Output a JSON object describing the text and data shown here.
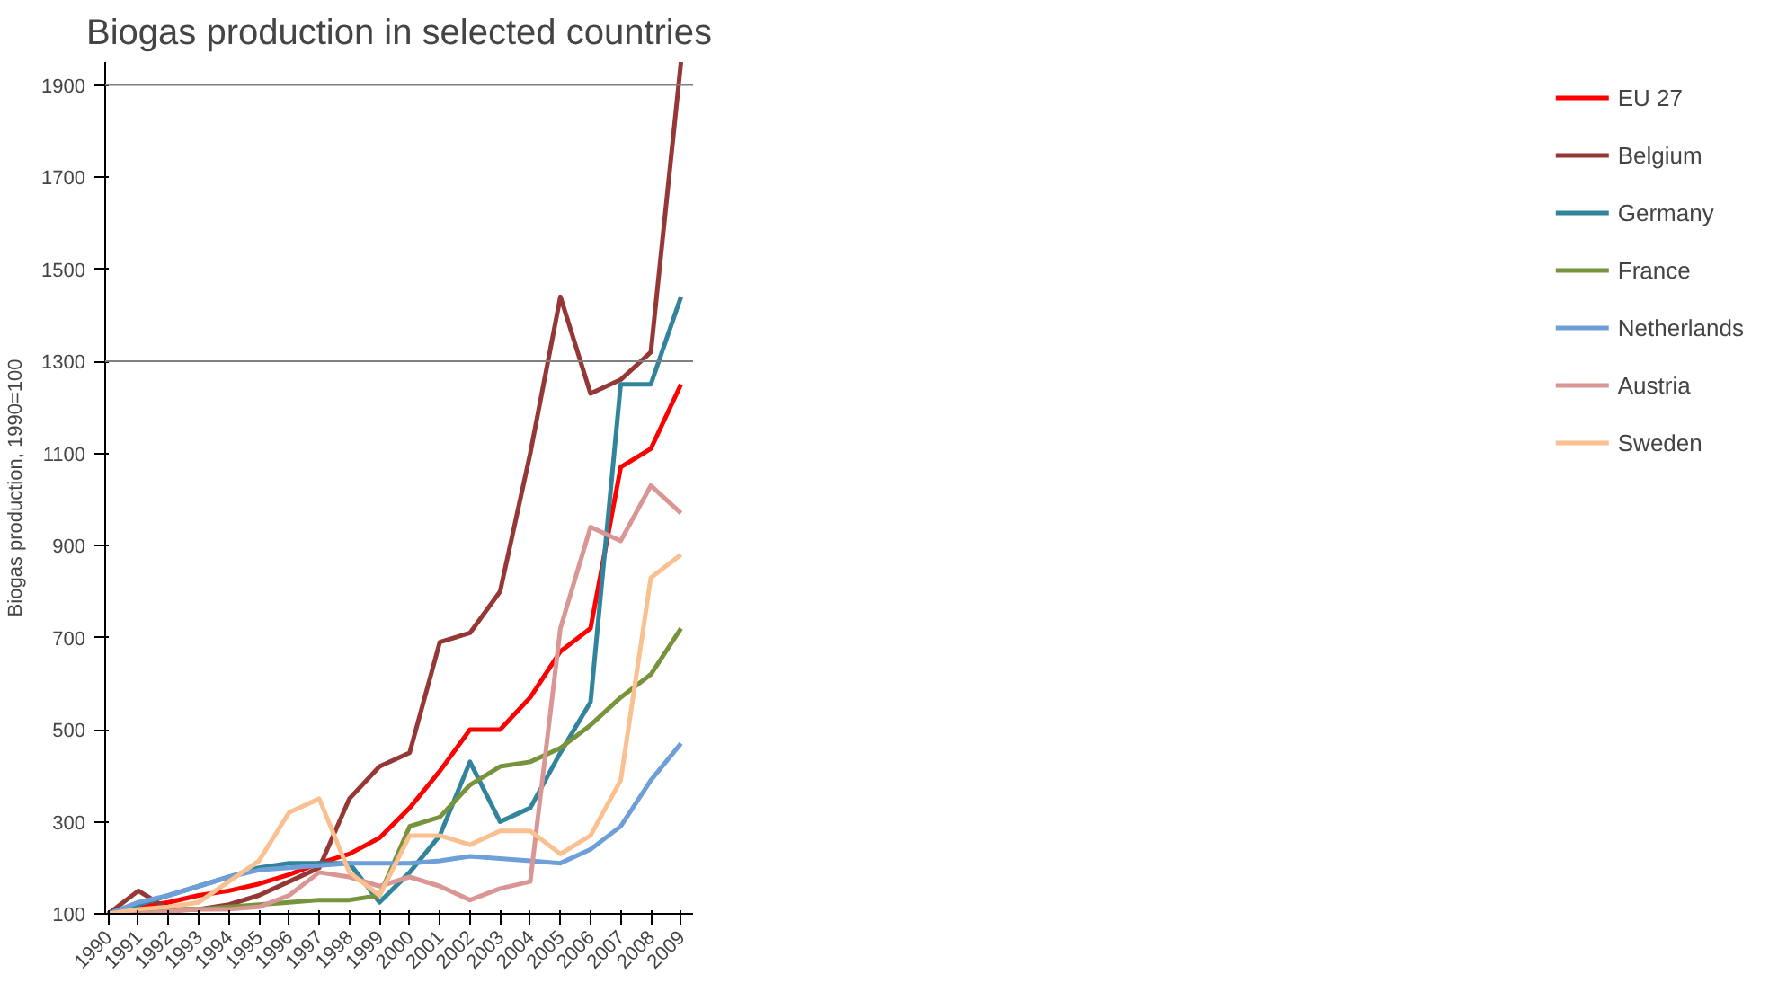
{
  "chart_data": {
    "type": "line",
    "title": "Biogas production in selected countries",
    "ylabel": "Biogas production, 1990=100",
    "categories": [
      "1990",
      "1991",
      "1992",
      "1993",
      "1994",
      "1995",
      "1996",
      "1997",
      "1998",
      "1999",
      "2000",
      "2001",
      "2002",
      "2003",
      "2004",
      "2005",
      "2006",
      "2007",
      "2008",
      "2009"
    ],
    "ylim": [
      100,
      1950
    ],
    "yticks": [
      100,
      300,
      500,
      700,
      900,
      1100,
      1300,
      1500,
      1700,
      1900
    ],
    "grid": false,
    "legend": "right",
    "marker": "none",
    "line_style": "solid",
    "ref_lines": [
      {
        "axis": "y",
        "value": 1300,
        "color": "#808080"
      },
      {
        "axis": "y",
        "value": 1900,
        "color": "#808080"
      }
    ],
    "series": [
      {
        "name": "EU 27",
        "color": "#ff0000",
        "values": [
          100,
          115,
          125,
          140,
          150,
          165,
          185,
          210,
          230,
          265,
          330,
          410,
          500,
          500,
          570,
          670,
          720,
          1070,
          1110,
          1250
        ]
      },
      {
        "name": "Belgium",
        "color": "#953735",
        "values": [
          100,
          150,
          110,
          110,
          120,
          140,
          170,
          200,
          350,
          420,
          450,
          690,
          710,
          800,
          1100,
          1440,
          1230,
          1260,
          1320,
          1950
        ]
      },
      {
        "name": "Germany",
        "color": "#31849b",
        "values": [
          100,
          120,
          140,
          160,
          180,
          200,
          210,
          210,
          210,
          125,
          190,
          270,
          430,
          300,
          330,
          450,
          560,
          1250,
          1250,
          1440
        ]
      },
      {
        "name": "France",
        "color": "#77933c",
        "values": [
          100,
          105,
          110,
          110,
          115,
          120,
          125,
          130,
          130,
          140,
          290,
          310,
          380,
          420,
          430,
          460,
          510,
          570,
          620,
          720
        ]
      },
      {
        "name": "Netherlands",
        "color": "#6f9fd8",
        "values": [
          100,
          125,
          140,
          160,
          180,
          195,
          200,
          205,
          210,
          210,
          210,
          215,
          225,
          220,
          215,
          210,
          240,
          290,
          390,
          470
        ]
      },
      {
        "name": "Austria",
        "color": "#d99694",
        "values": [
          100,
          100,
          105,
          110,
          110,
          115,
          140,
          190,
          180,
          160,
          180,
          160,
          130,
          155,
          170,
          720,
          940,
          910,
          1030,
          970
        ]
      },
      {
        "name": "Sweden",
        "color": "#fac090",
        "values": [
          100,
          110,
          115,
          125,
          170,
          215,
          320,
          350,
          190,
          140,
          270,
          270,
          250,
          280,
          280,
          230,
          270,
          390,
          830,
          880
        ]
      }
    ]
  }
}
